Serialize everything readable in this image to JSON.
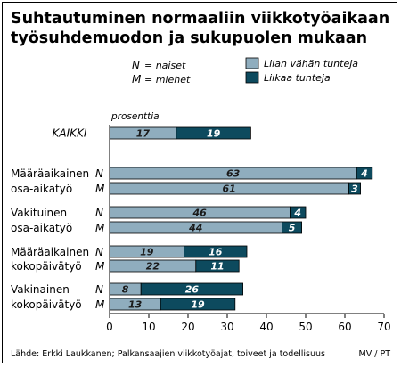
{
  "chart_data": {
    "type": "bar",
    "orientation": "horizontal",
    "stacked": true,
    "title_lines": [
      "Suhtautuminen normaaliin viikkotyöaikaan",
      "työsuhdemuodon ja sukupuolen mukaan"
    ],
    "unit_label": "prosenttia",
    "gender_legend": [
      {
        "symbol": "N",
        "meaning": "= naiset"
      },
      {
        "symbol": "M",
        "meaning": "= miehet"
      }
    ],
    "legend": [
      {
        "label": "Liian vähän tunteja",
        "color": "#8fadbe"
      },
      {
        "label": "Liikaa tunteja",
        "color": "#0d4a5e"
      }
    ],
    "groups": [
      {
        "label_lines": [
          "KAIKKI"
        ],
        "italic": true,
        "rows": [
          {
            "gender": "",
            "values": [
              17,
              19
            ]
          }
        ]
      },
      {
        "label_lines": [
          "Määräaikainen",
          "osa-aikatyö"
        ],
        "italic": false,
        "rows": [
          {
            "gender": "N",
            "values": [
              63,
              4
            ]
          },
          {
            "gender": "M",
            "values": [
              61,
              3
            ]
          }
        ]
      },
      {
        "label_lines": [
          "Vakituinen",
          "osa-aikatyö"
        ],
        "italic": false,
        "rows": [
          {
            "gender": "N",
            "values": [
              46,
              4
            ]
          },
          {
            "gender": "M",
            "values": [
              44,
              5
            ]
          }
        ]
      },
      {
        "label_lines": [
          "Määräaikainen",
          "kokopäivätyö"
        ],
        "italic": false,
        "rows": [
          {
            "gender": "N",
            "values": [
              19,
              16
            ]
          },
          {
            "gender": "M",
            "values": [
              22,
              11
            ]
          }
        ]
      },
      {
        "label_lines": [
          "Vakinainen",
          "kokopäivätyö"
        ],
        "italic": false,
        "rows": [
          {
            "gender": "N",
            "values": [
              8,
              26
            ]
          },
          {
            "gender": "M",
            "values": [
              13,
              19
            ]
          }
        ]
      }
    ],
    "x_ticks": [
      0,
      10,
      20,
      30,
      40,
      50,
      60,
      70
    ],
    "xlim": [
      0,
      70
    ],
    "grid": false
  },
  "footer": {
    "source": "Lähde: Erkki Laukkanen; Palkansaajien viikkotyöajat, toiveet ja todellisuus",
    "credit": "MV / PT"
  }
}
